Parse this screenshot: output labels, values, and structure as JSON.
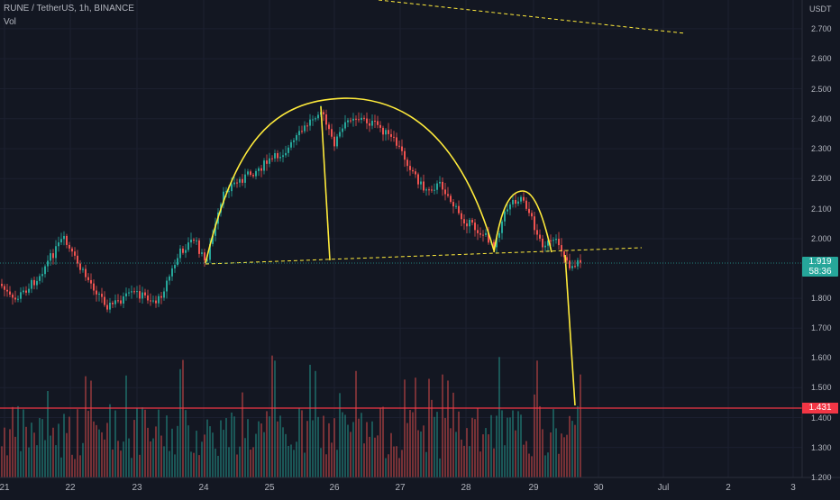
{
  "header": {
    "title": "RUNE / TetherUS, 1h, BINANCE",
    "volume_label": "Vol"
  },
  "axis": {
    "unit": "USDT",
    "y_ticks": [
      "2.700",
      "2.600",
      "2.500",
      "2.400",
      "2.300",
      "2.200",
      "2.100",
      "2.000",
      "1.800",
      "1.700",
      "1.600",
      "1.500",
      "1.400",
      "1.300",
      "1.200"
    ],
    "x_ticks": [
      "21",
      "22",
      "23",
      "24",
      "25",
      "26",
      "27",
      "28",
      "29",
      "30",
      "Jul",
      "2",
      "3"
    ]
  },
  "current_price": {
    "value": "1.919",
    "countdown": "58:36",
    "color": "#26a69a"
  },
  "horizontal_level": {
    "value": "1.431",
    "color": "#f23645"
  },
  "colors": {
    "background": "#131722",
    "up": "#26a69a",
    "down": "#ef5350",
    "drawing": "#ffeb3b",
    "grid": "#1e222d"
  },
  "chart_data": {
    "type": "candlestick",
    "symbol": "RUNE / TetherUS",
    "interval": "1h",
    "exchange": "BINANCE",
    "x": [
      "21",
      "22",
      "23",
      "24",
      "25",
      "26",
      "27",
      "28",
      "29",
      "30"
    ],
    "close_approx": [
      1.88,
      2.0,
      1.77,
      1.93,
      2.3,
      2.4,
      2.33,
      1.97,
      2.13,
      1.92
    ],
    "ylim": [
      1.2,
      2.75
    ],
    "last_price": 1.919,
    "level": 1.431,
    "drawings": [
      "neckline",
      "head arc",
      "head drop",
      "right shoulder arc",
      "target projection",
      "descending trendline"
    ]
  }
}
